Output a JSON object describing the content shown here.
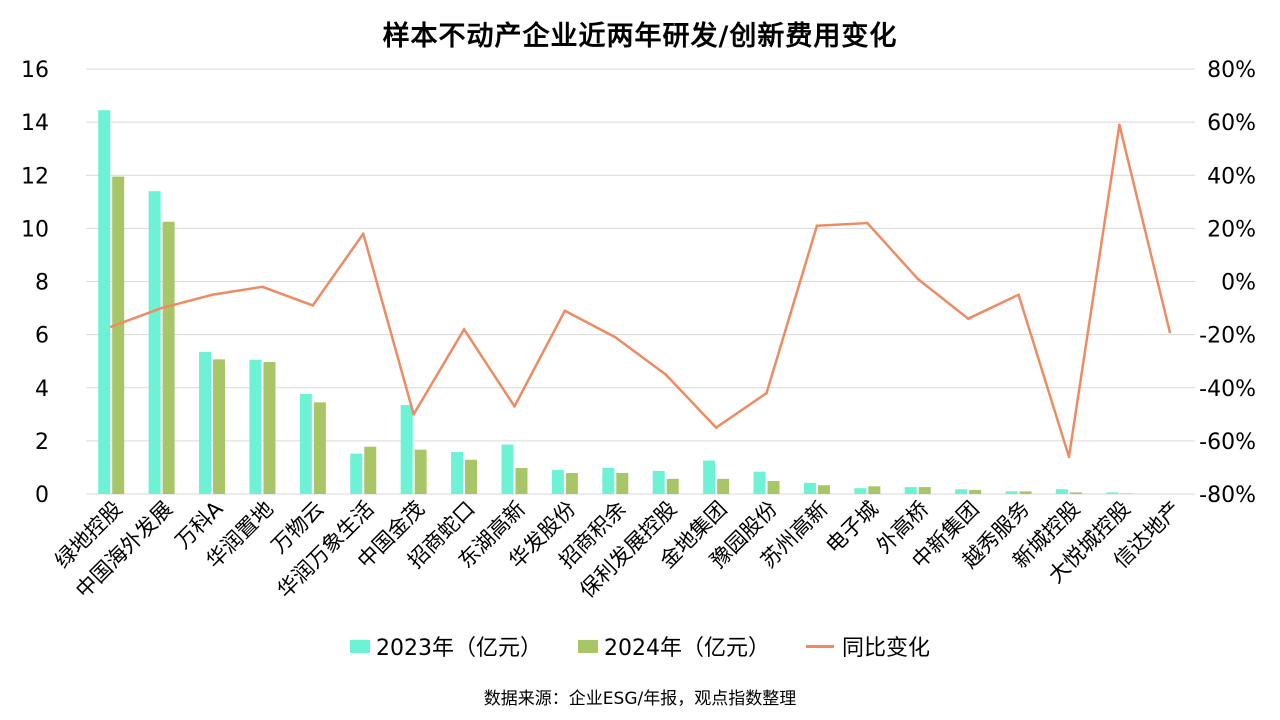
{
  "chart_data": {
    "type": "bar+line",
    "title": "样本不动产企业近两年研发/创新费用变化",
    "categories": [
      "绿地控股",
      "中国海外发展",
      "万科A",
      "华润置地",
      "万物云",
      "华润万象生活",
      "中国金茂",
      "招商蛇口",
      "东湖高新",
      "华发股份",
      "招商积余",
      "保利发展控股",
      "金地集团",
      "豫园股份",
      "苏州高新",
      "电子城",
      "外高桥",
      "中新集团",
      "越秀服务",
      "新城控股",
      "大悦城控股",
      "信达地产"
    ],
    "series": [
      {
        "name": "2023年（亿元）",
        "axis": "left",
        "kind": "bar",
        "color": "#6ef2d6",
        "values": [
          14.45,
          11.4,
          5.35,
          5.05,
          3.77,
          1.52,
          3.35,
          1.58,
          1.86,
          0.91,
          0.98,
          0.87,
          1.26,
          0.84,
          0.42,
          0.22,
          0.26,
          0.18,
          0.1,
          0.18,
          0.06,
          0
        ]
      },
      {
        "name": "2024年（亿元）",
        "axis": "left",
        "kind": "bar",
        "color": "#a8c667",
        "values": [
          11.95,
          10.25,
          5.07,
          4.97,
          3.45,
          1.78,
          1.67,
          1.29,
          0.98,
          0.79,
          0.79,
          0.57,
          0.57,
          0.49,
          0.33,
          0.29,
          0.26,
          0.15,
          0.1,
          0.06,
          0.02,
          0
        ]
      },
      {
        "name": "同比变化",
        "axis": "right",
        "kind": "line",
        "color": "#ee8b63",
        "values": [
          -17,
          -10,
          -5,
          -2,
          -9,
          18,
          -50,
          -18,
          -47,
          -11,
          -21,
          -35,
          -55,
          -42,
          21,
          22,
          1,
          -14,
          -5,
          -66,
          59,
          -19
        ]
      }
    ],
    "ylim_left": [
      0,
      16
    ],
    "yticks_left": [
      "0",
      "2",
      "4",
      "6",
      "8",
      "10",
      "12",
      "14",
      "16"
    ],
    "ylim_right": [
      -80,
      80
    ],
    "yticks_right": [
      "-80%",
      "-60%",
      "-40%",
      "-20%",
      "0%",
      "20%",
      "40%",
      "60%",
      "80%"
    ],
    "grid": true,
    "legend_position": "bottom"
  },
  "legend": {
    "item1": "2023年（亿元）",
    "item2": "2024年（亿元）",
    "item3": "同比变化"
  },
  "source": "数据来源：企业ESG/年报，观点指数整理",
  "colors": {
    "bar2023": "#6ef2d6",
    "bar2024": "#a8c667",
    "line": "#ee8b63",
    "grid": "#d9d9d9"
  }
}
